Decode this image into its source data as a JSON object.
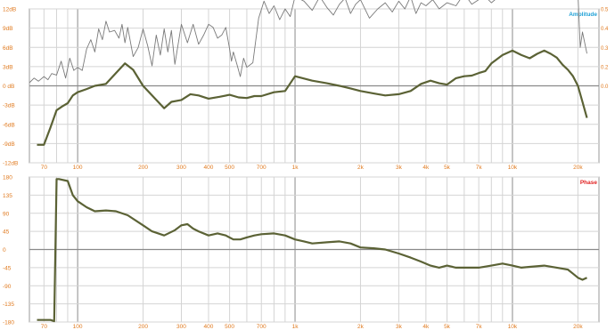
{
  "header": {
    "title": "",
    "right_caption": ""
  },
  "chart_data": [
    {
      "type": "line",
      "name": "amplitude",
      "legend": "Amplitude",
      "legend_color": "#1ea0d6",
      "x_scale": "log",
      "xlim": [
        60,
        25000
      ],
      "x_tick_labels": [
        "70",
        "100",
        "200",
        "300",
        "400",
        "500",
        "700",
        "1k",
        "2k",
        "3k",
        "4k",
        "5k",
        "7k",
        "10k",
        "20k"
      ],
      "x_tick_values": [
        70,
        100,
        200,
        300,
        400,
        500,
        700,
        1000,
        2000,
        3000,
        4000,
        5000,
        7000,
        10000,
        20000
      ],
      "y_tick_labels": [
        "12dB",
        "9dB",
        "6dB",
        "3dB",
        "0 dB",
        "-3dB",
        "-6dB",
        "-9dB",
        "-12dB"
      ],
      "y_tick_values": [
        12,
        9,
        6,
        3,
        0,
        -3,
        -6,
        -9,
        -12
      ],
      "ylim": [
        -12,
        12
      ],
      "right_tick_labels": [
        "0.5",
        "0.4",
        "0.3",
        "0.2",
        "0.0"
      ],
      "series": [
        {
          "color": "#5b6235",
          "x": [
            65,
            70,
            75,
            80,
            85,
            90,
            95,
            100,
            110,
            120,
            135,
            150,
            165,
            180,
            200,
            220,
            250,
            270,
            300,
            330,
            360,
            400,
            450,
            500,
            550,
            600,
            650,
            700,
            800,
            900,
            1000,
            1200,
            1400,
            1600,
            1800,
            2000,
            2300,
            2600,
            3000,
            3400,
            3800,
            4200,
            4600,
            5000,
            5500,
            6000,
            6500,
            7000,
            7500,
            8000,
            9000,
            10000,
            11000,
            12000,
            13000,
            14000,
            15000,
            16000,
            17000,
            18000,
            19000,
            20000,
            21000,
            22000
          ],
          "values": [
            -9.2,
            -9.2,
            -6.5,
            -3.8,
            -3.2,
            -2.7,
            -1.5,
            -1.0,
            -0.5,
            0.0,
            0.3,
            2.0,
            3.5,
            2.5,
            0.0,
            -1.5,
            -3.5,
            -2.5,
            -2.2,
            -1.3,
            -1.5,
            -2.0,
            -1.7,
            -1.4,
            -1.8,
            -1.9,
            -1.6,
            -1.6,
            -1.0,
            -0.8,
            1.5,
            0.8,
            0.4,
            0.0,
            -0.4,
            -0.8,
            -1.2,
            -1.5,
            -1.3,
            -0.8,
            0.3,
            0.8,
            0.4,
            0.2,
            1.2,
            1.5,
            1.6,
            2.0,
            2.3,
            3.5,
            4.8,
            5.5,
            4.8,
            4.3,
            5.0,
            5.5,
            5.0,
            4.4,
            3.3,
            2.5,
            1.5,
            0.0,
            -2.5,
            -5.0
          ]
        },
        {
          "color": "#7a7a7a",
          "axis": "right",
          "x": [
            60,
            63,
            66,
            70,
            73,
            76,
            80,
            84,
            88,
            92,
            96,
            100,
            105,
            110,
            115,
            120,
            125,
            130,
            135,
            140,
            148,
            155,
            160,
            165,
            170,
            180,
            190,
            200,
            210,
            220,
            230,
            240,
            250,
            260,
            270,
            280,
            300,
            320,
            340,
            360,
            380,
            400,
            420,
            440,
            460,
            480,
            500,
            510,
            520,
            540,
            560,
            580,
            600,
            640,
            680,
            720,
            760,
            800,
            850,
            900,
            950,
            1000,
            1100,
            1200,
            1300,
            1400,
            1500,
            1600,
            1700,
            1800,
            1900,
            2000,
            2200,
            2400,
            2600,
            2800,
            3000,
            3200,
            3400,
            3600,
            3800,
            4000,
            4300,
            4600,
            5000,
            5500,
            6000,
            6500,
            7000,
            7500,
            8000,
            9000,
            10000,
            11000,
            12000,
            13000,
            14000,
            15000,
            16000,
            17000,
            18000,
            19000,
            20000,
            20500,
            21000,
            22000
          ],
          "values": [
            0.02,
            0.05,
            0.03,
            0.06,
            0.04,
            0.08,
            0.07,
            0.16,
            0.05,
            0.18,
            0.1,
            0.12,
            0.1,
            0.24,
            0.3,
            0.22,
            0.37,
            0.3,
            0.42,
            0.35,
            0.36,
            0.31,
            0.4,
            0.28,
            0.38,
            0.19,
            0.25,
            0.37,
            0.26,
            0.13,
            0.33,
            0.2,
            0.37,
            0.22,
            0.36,
            0.14,
            0.4,
            0.28,
            0.4,
            0.27,
            0.33,
            0.4,
            0.38,
            0.31,
            0.33,
            0.38,
            0.24,
            0.16,
            0.22,
            0.14,
            0.06,
            0.18,
            0.12,
            0.15,
            0.44,
            0.55,
            0.47,
            0.52,
            0.43,
            0.5,
            0.45,
            0.58,
            0.55,
            0.49,
            0.58,
            0.51,
            0.46,
            0.53,
            0.57,
            0.47,
            0.53,
            0.56,
            0.44,
            0.5,
            0.54,
            0.48,
            0.55,
            0.5,
            0.58,
            0.47,
            0.54,
            0.52,
            0.56,
            0.5,
            0.54,
            0.52,
            0.6,
            0.53,
            0.56,
            0.58,
            0.54,
            0.6,
            0.67,
            0.65,
            0.68,
            0.63,
            0.66,
            0.64,
            0.6,
            0.62,
            0.58,
            0.63,
            0.6,
            0.25,
            0.35,
            0.21
          ]
        }
      ]
    },
    {
      "type": "line",
      "name": "phase",
      "legend": "Phase",
      "legend_color": "#e02020",
      "x_scale": "log",
      "xlim": [
        60,
        25000
      ],
      "x_tick_labels": [
        "70",
        "100",
        "200",
        "300",
        "400",
        "500",
        "700",
        "1k",
        "2k",
        "3k",
        "4k",
        "5k",
        "7k",
        "10k",
        "20k"
      ],
      "x_tick_values": [
        70,
        100,
        200,
        300,
        400,
        500,
        700,
        1000,
        2000,
        3000,
        4000,
        5000,
        7000,
        10000,
        20000
      ],
      "y_tick_labels": [
        "180",
        "135",
        "90",
        "45",
        "0",
        "-45",
        "-90",
        "-135",
        "-180"
      ],
      "y_tick_values": [
        180,
        135,
        90,
        45,
        0,
        -45,
        -90,
        -135,
        -180
      ],
      "ylim": [
        -180,
        180
      ],
      "series": [
        {
          "color": "#5b6235",
          "x": [
            65,
            70,
            75,
            78,
            80,
            82,
            90,
            95,
            100,
            110,
            120,
            135,
            150,
            170,
            200,
            220,
            250,
            280,
            300,
            320,
            340,
            360,
            400,
            440,
            480,
            520,
            560,
            600,
            650,
            700,
            800,
            900,
            1000,
            1100,
            1200,
            1400,
            1600,
            1800,
            2000,
            2300,
            2600,
            3000,
            3400,
            3800,
            4200,
            4600,
            5000,
            5500,
            6000,
            7000,
            8000,
            9000,
            10000,
            11000,
            12000,
            14000,
            16000,
            18000,
            19000,
            20000,
            21000,
            22000
          ],
          "values": [
            -175,
            -175,
            -175,
            -178,
            175,
            175,
            170,
            135,
            120,
            105,
            95,
            97,
            95,
            85,
            60,
            45,
            35,
            48,
            60,
            63,
            52,
            45,
            35,
            40,
            35,
            25,
            25,
            30,
            35,
            38,
            40,
            35,
            25,
            20,
            15,
            18,
            20,
            15,
            5,
            3,
            0,
            -10,
            -20,
            -30,
            -40,
            -45,
            -40,
            -45,
            -45,
            -45,
            -40,
            -35,
            -40,
            -45,
            -43,
            -40,
            -45,
            -50,
            -60,
            -70,
            -75,
            -70
          ]
        }
      ]
    }
  ]
}
